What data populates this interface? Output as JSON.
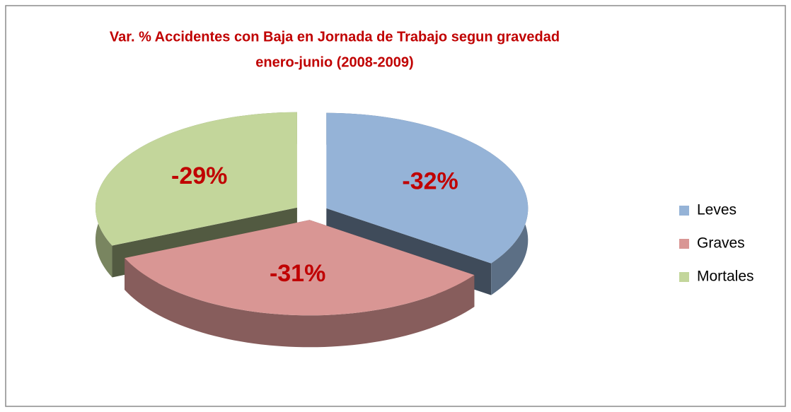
{
  "chart_data": {
    "type": "pie",
    "title": [
      "Var. % Accidentes con Baja en Jornada de Trabajo segun gravedad",
      "enero-junio (2008-2009)"
    ],
    "categories": [
      "Leves",
      "Graves",
      "Mortales"
    ],
    "values": [
      -32,
      -31,
      -29
    ],
    "value_labels": [
      "-32%",
      "-31%",
      "-29%"
    ],
    "colors": [
      "#95b3d7",
      "#d99694",
      "#c3d69b"
    ],
    "legend": "right"
  }
}
